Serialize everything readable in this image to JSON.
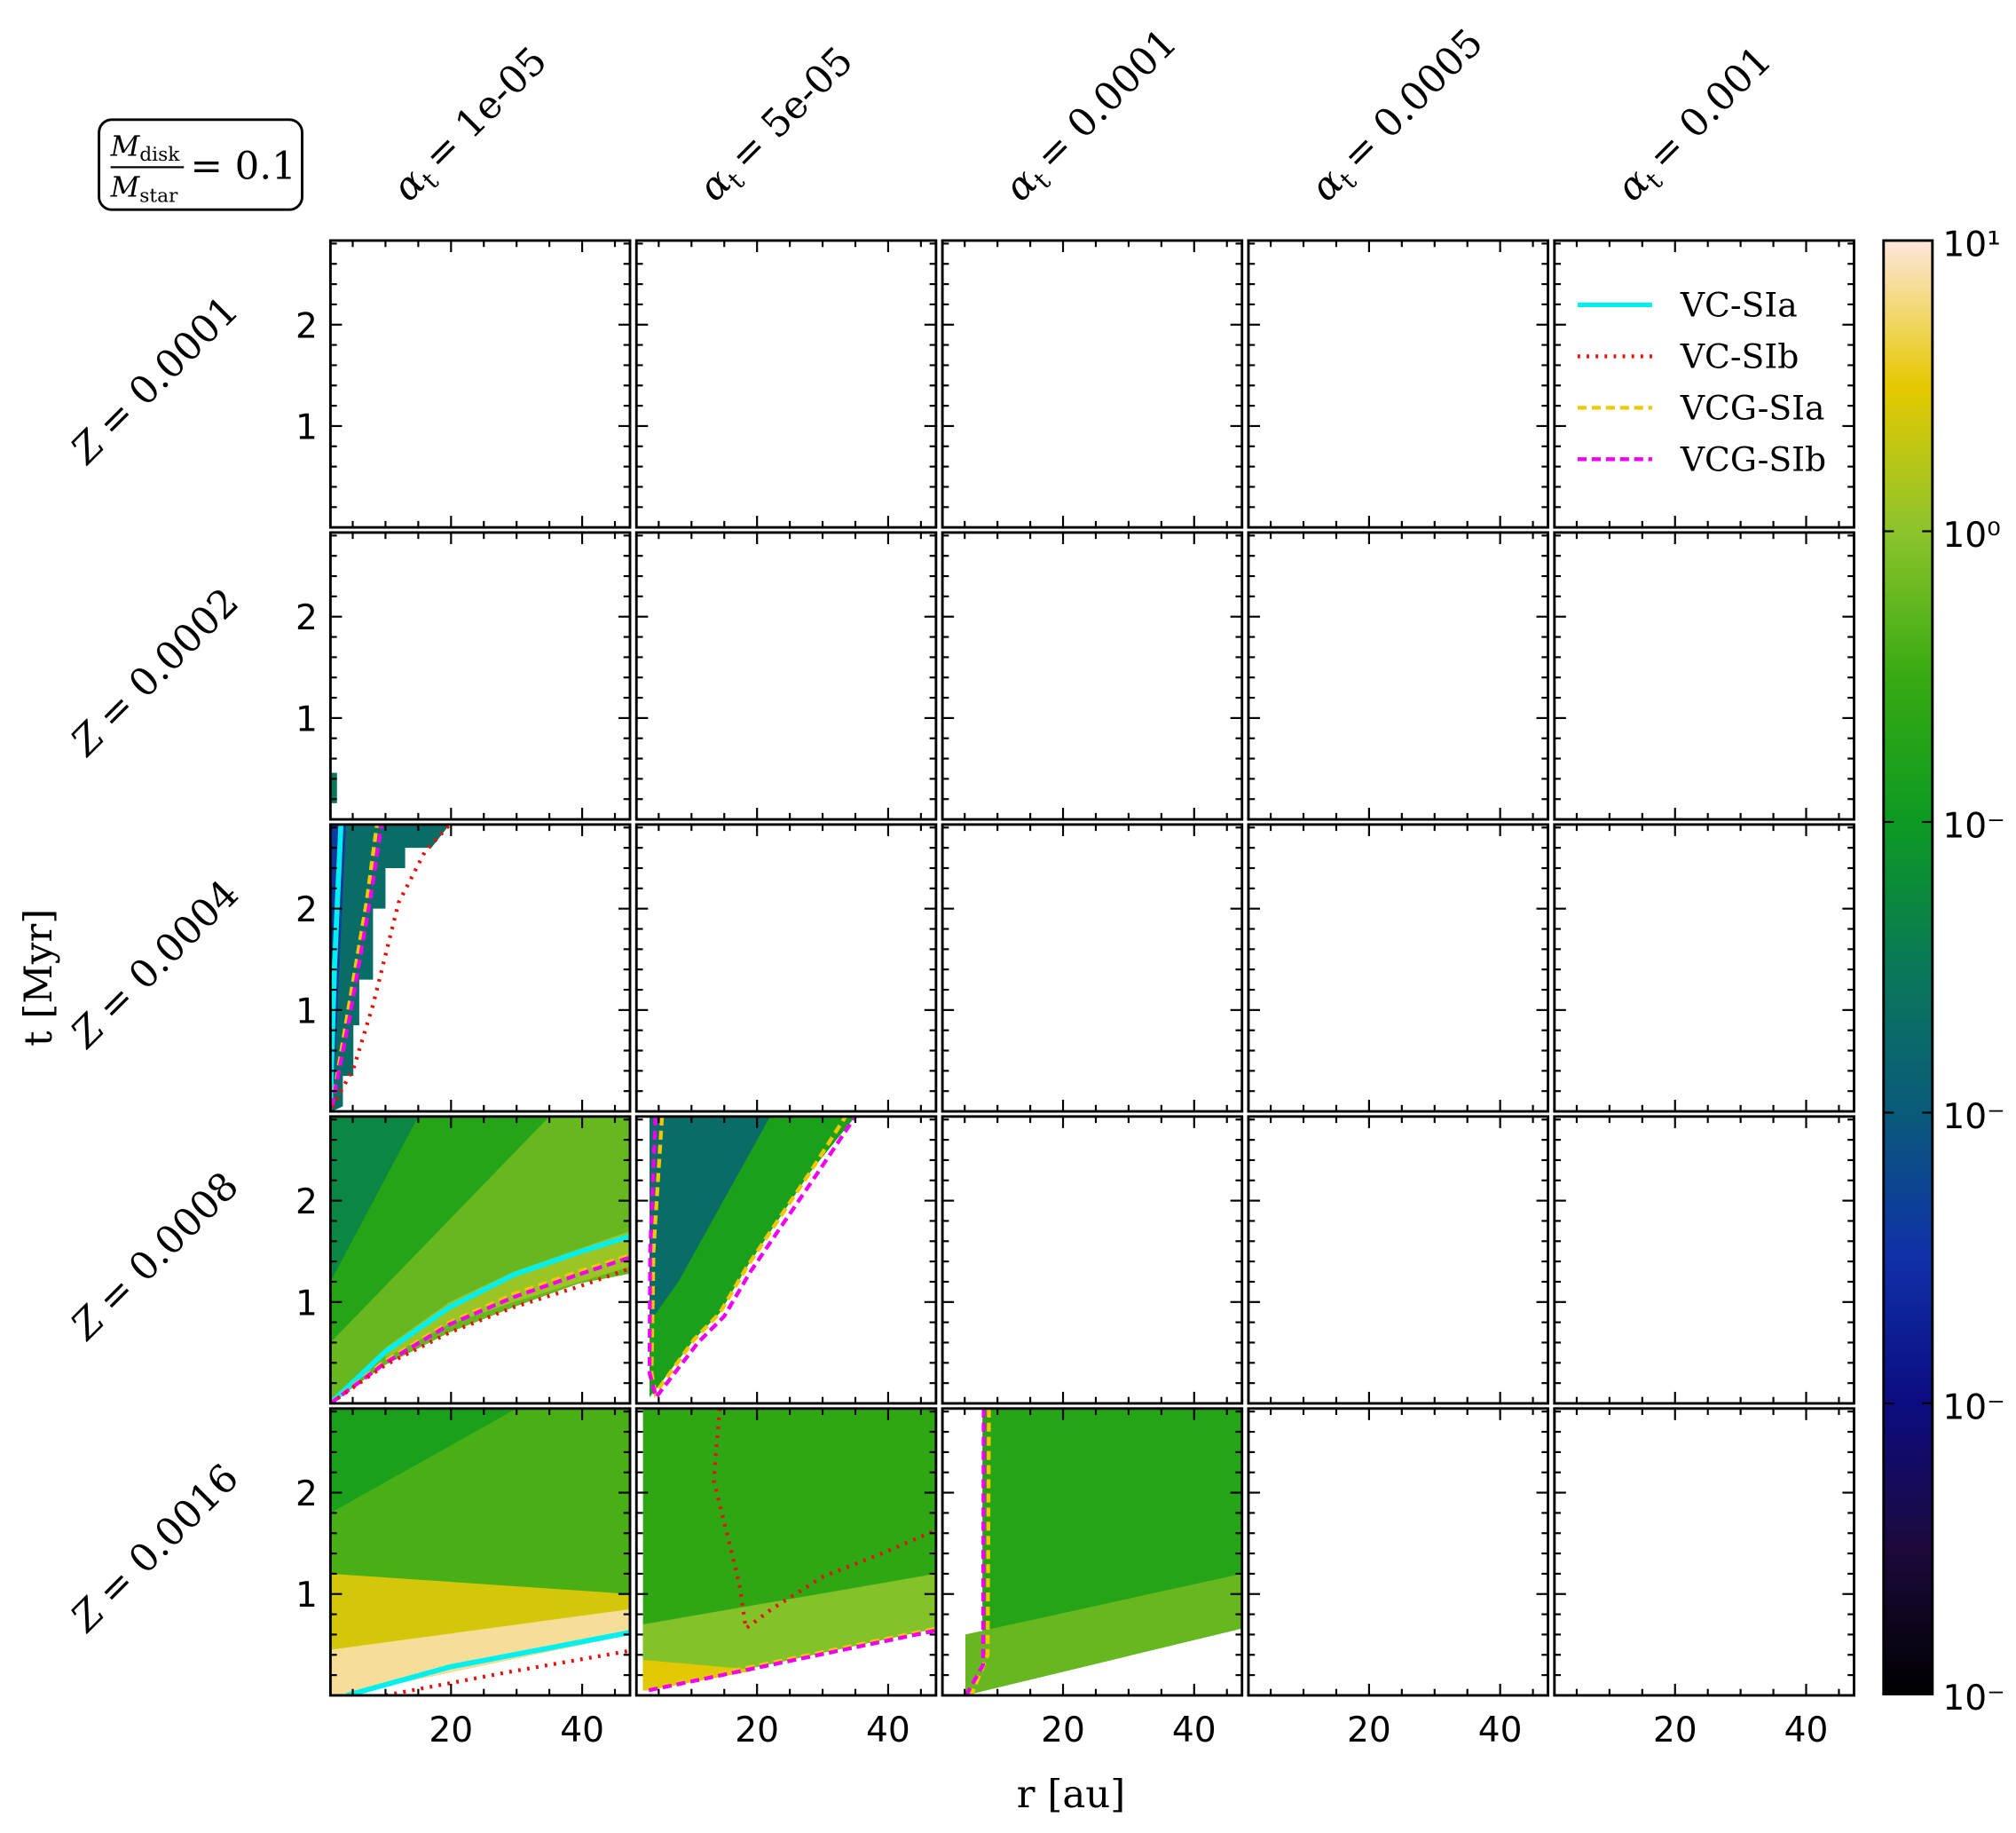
{
  "chart_data": {
    "type": "heatmap-grid",
    "annotation": {
      "num": "M",
      "num_sub": "disk",
      "den": "M",
      "den_sub": "star",
      "eq": "= 0.1"
    },
    "col_symbol": "α",
    "col_sub": "t",
    "columns": [
      "= 1e-05",
      "= 5e-05",
      "= 0.0001",
      "= 0.0005",
      "= 0.001"
    ],
    "row_symbol": "Z",
    "rows": [
      "= 0.0001",
      "= 0.0002",
      "= 0.0004",
      "= 0.0008",
      "= 0.0016"
    ],
    "xlabel": "r [au]",
    "ylabel": "t [Myr]",
    "xlim": [
      1.6,
      47.3
    ],
    "ylim": [
      0,
      2.83
    ],
    "xticks": [
      20,
      40
    ],
    "xminorticks": [
      5,
      10,
      15,
      25,
      30,
      35,
      45
    ],
    "yticks": [
      1,
      2
    ],
    "yminorticks": [
      0.2,
      0.4,
      0.6,
      0.8,
      1.2,
      1.4,
      1.6,
      1.8,
      2.2,
      2.4,
      2.6,
      2.8
    ],
    "colorbar": {
      "lim": [
        0.0001,
        10
      ],
      "log": true,
      "ticks": [
        {
          "value": 10,
          "label": "10¹"
        },
        {
          "value": 1,
          "label": "10⁰"
        },
        {
          "value": 0.1,
          "label": "10⁻"
        },
        {
          "value": 0.01,
          "label": "10⁻"
        },
        {
          "value": 0.001,
          "label": "10⁻"
        },
        {
          "value": 0.0001,
          "label": "10⁻"
        }
      ],
      "colormap": [
        "#000000",
        "#1c0a3c",
        "#0c0c80",
        "#1030a8",
        "#0a5a7a",
        "#0a7858",
        "#0c9a22",
        "#38aa12",
        "#8cc42c",
        "#e6c800",
        "#fde6dc"
      ]
    },
    "legend": "upper right",
    "series": [
      {
        "name": "VC-SIa",
        "color": "#00f0f0",
        "dash": "solid"
      },
      {
        "name": "VC-SIb",
        "color": "#e8100a",
        "dash": "dotted"
      },
      {
        "name": "VCG-SIa",
        "color": "#f0c800",
        "dash": "dashed"
      },
      {
        "name": "VCG-SIb",
        "color": "#f000f0",
        "dash": "dashed"
      }
    ],
    "panels": [
      {
        "row": 1,
        "col": 0,
        "regions": [
          {
            "x": [
              1.6,
              2.6,
              2.6,
              1.6
            ],
            "y": [
              0.16,
              0.16,
              0.46,
              0.46
            ],
            "value": 0.03
          }
        ],
        "contours": []
      },
      {
        "row": 2,
        "col": 0,
        "regions": [
          {
            "x": [
              1.6,
              1.6,
              19.8,
              17,
              13,
              13,
              10,
              10,
              8.1,
              8.1,
              6,
              6,
              5.1,
              5.1,
              3.5,
              3.5,
              1.8
            ],
            "y": [
              0,
              2.83,
              2.83,
              2.6,
              2.6,
              2.4,
              2.4,
              2.0,
              2.0,
              1.3,
              1.3,
              0.85,
              0.85,
              0.35,
              0.35,
              0.05,
              0
            ],
            "value": 0.02
          },
          {
            "x": [
              1.6,
              1.6,
              4,
              3,
              2.2
            ],
            "y": [
              0.3,
              2.83,
              2.83,
              1.5,
              0.3
            ],
            "value": 0.004
          }
        ],
        "contours": [
          {
            "series": 0,
            "x": [
              1.6,
              2.2,
              3.2
            ],
            "y": [
              0.1,
              1.4,
              2.83
            ]
          },
          {
            "series": 2,
            "x": [
              1.8,
              4.1,
              7.1,
              8.7
            ],
            "y": [
              0.04,
              0.92,
              2.06,
              2.83
            ]
          },
          {
            "series": 3,
            "x": [
              1.8,
              4.5,
              7.6,
              9.4
            ],
            "y": [
              0.04,
              0.92,
              2.06,
              2.83
            ]
          },
          {
            "series": 1,
            "x": [
              1.8,
              5.1,
              8.1,
              12,
              16,
              19.8
            ],
            "y": [
              0.04,
              0.42,
              1.05,
              2.06,
              2.56,
              2.83
            ]
          }
        ]
      },
      {
        "row": 3,
        "col": 0,
        "regions": [
          {
            "x": [
              1.6,
              1.6,
              47.3,
              47.3,
              39.4,
              29.6,
              19.8,
              10
            ],
            "y": [
              0,
              2.83,
              2.83,
              1.28,
              1.18,
              0.95,
              0.7,
              0.38
            ],
            "value": 0.6
          },
          {
            "x": [
              10,
              19.8,
              29.6,
              47.3,
              47.3,
              29.6,
              19.8,
              10
            ],
            "y": [
              0.45,
              0.78,
              1.0,
              1.35,
              1.7,
              1.3,
              1.0,
              0.55
            ],
            "value": 1.2
          },
          {
            "x": [
              1.6,
              1.6,
              35
            ],
            "y": [
              0.6,
              2.83,
              2.83
            ],
            "value": 0.2
          },
          {
            "x": [
              1.6,
              1.6,
              15
            ],
            "y": [
              1.2,
              2.83,
              2.83
            ],
            "value": 0.05
          }
        ],
        "contours": [
          {
            "series": 0,
            "x": [
              1.6,
              10,
              19.8,
              29.6,
              39.4,
              47.3
            ],
            "y": [
              0,
              0.51,
              0.95,
              1.27,
              1.49,
              1.65
            ]
          },
          {
            "series": 2,
            "x": [
              1.6,
              10,
              19.8,
              29.6,
              39.4,
              47.3
            ],
            "y": [
              0,
              0.42,
              0.8,
              1.08,
              1.3,
              1.46
            ]
          },
          {
            "series": 3,
            "x": [
              1.6,
              10,
              19.8,
              29.6,
              39.4,
              47.3
            ],
            "y": [
              0,
              0.4,
              0.78,
              1.05,
              1.27,
              1.44
            ]
          },
          {
            "series": 1,
            "x": [
              1.6,
              10,
              19.8,
              29.6,
              39.4,
              47.3
            ],
            "y": [
              0,
              0.38,
              0.7,
              0.95,
              1.15,
              1.33
            ]
          }
        ]
      },
      {
        "row": 3,
        "col": 1,
        "regions": [
          {
            "x": [
              3.6,
              3.6,
              35,
              28.1,
              22.2,
              18.3,
              14.3,
              10.4,
              4.5
            ],
            "y": [
              0.06,
              2.83,
              2.83,
              2.28,
              1.71,
              1.33,
              0.89,
              0.63,
              0.13
            ],
            "value": 0.15
          },
          {
            "x": [
              3.6,
              3.6,
              22,
              8
            ],
            "y": [
              0.8,
              2.83,
              2.83,
              1.2
            ],
            "value": 0.02
          }
        ],
        "contours": [
          {
            "series": 2,
            "x": [
              5.5,
              4.2,
              3.9,
              4.5,
              10.4,
              14.3,
              18.3,
              22.2,
              28.1,
              33.5
            ],
            "y": [
              2.83,
              1.5,
              0.3,
              0.1,
              0.63,
              0.89,
              1.33,
              1.71,
              2.28,
              2.83
            ]
          },
          {
            "series": 3,
            "x": [
              4.5,
              3.7,
              3.6,
              4.6,
              11,
              15,
              19,
              23,
              29,
              35
            ],
            "y": [
              2.83,
              1.5,
              0.3,
              0.06,
              0.6,
              0.86,
              1.3,
              1.68,
              2.25,
              2.83
            ]
          }
        ]
      },
      {
        "row": 4,
        "col": 0,
        "regions": [
          {
            "x": [
              1.6,
              1.6,
              47.3,
              47.3,
              3.2
            ],
            "y": [
              0,
              2.83,
              2.83,
              0.6,
              0
            ],
            "value": 0.4
          },
          {
            "x": [
              1.6,
              1.6,
              47.3,
              47.3
            ],
            "y": [
              0,
              1.2,
              1.0,
              0.6
            ],
            "value": 2.5
          },
          {
            "x": [
              1.6,
              1.6,
              47.3,
              47.3,
              3.2
            ],
            "y": [
              0,
              0.45,
              0.85,
              0.6,
              0
            ],
            "value": 7
          },
          {
            "x": [
              1.6,
              1.6,
              30
            ],
            "y": [
              1.8,
              2.83,
              2.83
            ],
            "value": 0.15
          }
        ],
        "contours": [
          {
            "series": 0,
            "x": [
              4.1,
              19.8,
              47.3
            ],
            "y": [
              0,
              0.28,
              0.62
            ]
          },
          {
            "series": 1,
            "x": [
              10,
              29.6,
              47.3
            ],
            "y": [
              0,
              0.24,
              0.44
            ]
          }
        ]
      },
      {
        "row": 4,
        "col": 1,
        "regions": [
          {
            "x": [
              2.6,
              2.6,
              47.3,
              47.3,
              3.5
            ],
            "y": [
              0.05,
              2.83,
              2.83,
              0.66,
              0.05
            ],
            "value": 0.25
          },
          {
            "x": [
              2.6,
              2.6,
              47.3,
              47.3,
              3.5
            ],
            "y": [
              0.05,
              0.7,
              1.2,
              0.66,
              0.05
            ],
            "value": 0.9
          },
          {
            "x": [
              2.6,
              2.6,
              20,
              3.5
            ],
            "y": [
              0.05,
              0.35,
              0.25,
              0.05
            ],
            "value": 3
          }
        ],
        "contours": [
          {
            "series": 1,
            "x": [
              14.3,
              13.4,
              17.3,
              18.3,
              22.2,
              30,
              39.8,
              47.3
            ],
            "y": [
              2.83,
              2.12,
              1.1,
              0.66,
              0.85,
              1.17,
              1.42,
              1.63
            ]
          },
          {
            "series": 2,
            "x": [
              3.5,
              47.3
            ],
            "y": [
              0.07,
              0.66
            ]
          },
          {
            "series": 3,
            "x": [
              3.5,
              47.3
            ],
            "y": [
              0.05,
              0.64
            ]
          }
        ]
      },
      {
        "row": 4,
        "col": 2,
        "regions": [
          {
            "x": [
              5.1,
              7.7,
              7.7,
              47.3,
              47.3,
              5.1
            ],
            "y": [
              0.2,
              0.3,
              2.83,
              2.83,
              0.66,
              0
            ],
            "value": 0.2
          },
          {
            "x": [
              5.1,
              47.3,
              47.3,
              5.1
            ],
            "y": [
              0.6,
              1.2,
              0.66,
              0
            ],
            "value": 0.6
          }
        ],
        "contours": [
          {
            "series": 2,
            "x": [
              8.7,
              8.5,
              6
            ],
            "y": [
              2.83,
              0.4,
              0
            ]
          },
          {
            "series": 3,
            "x": [
              7.9,
              7.8,
              5.2
            ],
            "y": [
              2.83,
              0.3,
              0
            ]
          }
        ]
      }
    ]
  }
}
